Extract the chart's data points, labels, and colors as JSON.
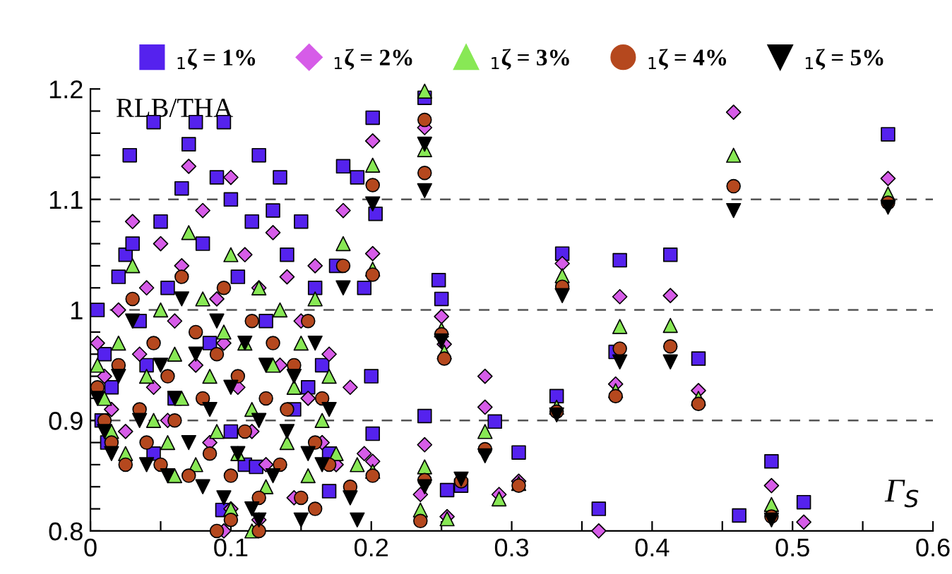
{
  "chart_data": {
    "type": "scatter",
    "xlabel": "Γ$_{S}$",
    "ylabel": "RLB/THA",
    "xlim": [
      0,
      0.6
    ],
    "xticks": [
      0,
      {
        "value": 0.05,
        "label": null
      },
      0.1,
      {
        "value": 0.15,
        "label": null
      },
      0.2,
      {
        "value": 0.25,
        "label": null
      },
      0.3,
      {
        "value": 0.35,
        "label": null
      },
      0.4,
      {
        "value": 0.45,
        "label": null
      },
      0.5,
      {
        "value": 0.55,
        "label": null
      },
      0.6
    ],
    "ylim": [
      0.8,
      1.2
    ],
    "yticks": [
      0.8,
      {
        "value": 0.82,
        "label": null
      },
      {
        "value": 0.84,
        "label": null
      },
      {
        "value": 0.86,
        "label": null
      },
      {
        "value": 0.88,
        "label": null
      },
      0.9,
      {
        "value": 0.92,
        "label": null
      },
      {
        "value": 0.94,
        "label": null
      },
      {
        "value": 0.96,
        "label": null
      },
      {
        "value": 0.98,
        "label": null
      },
      1,
      {
        "value": 1.02,
        "label": null
      },
      {
        "value": 1.04,
        "label": null
      },
      {
        "value": 1.06,
        "label": null
      },
      {
        "value": 1.08,
        "label": null
      },
      1.1,
      {
        "value": 1.12,
        "label": null
      },
      {
        "value": 1.14,
        "label": null
      },
      {
        "value": 1.16,
        "label": null
      },
      {
        "value": 1.18,
        "label": null
      },
      1.2
    ],
    "grid": "y",
    "legend": "top",
    "series": [
      {
        "name": "$_{1}$ζ = 1%",
        "color": "#5522ee",
        "marker": "square",
        "x": [
          0.005,
          0.01,
          0.015,
          0.008,
          0.012,
          0.02,
          0.025,
          0.03,
          0.028,
          0.035,
          0.04,
          0.045,
          0.045,
          0.05,
          0.055,
          0.06,
          0.065,
          0.07,
          0.075,
          0.08,
          0.085,
          0.09,
          0.095,
          0.1,
          0.1,
          0.105,
          0.11,
          0.115,
          0.12,
          0.125,
          0.13,
          0.135,
          0.14,
          0.145,
          0.15,
          0.155,
          0.16,
          0.165,
          0.17,
          0.175,
          0.18,
          0.19,
          0.195,
          0.2,
          0.118,
          0.17,
          0.094,
          0.201,
          0.203,
          0.201,
          0.238,
          0.238,
          0.248,
          0.25,
          0.288,
          0.305,
          0.254,
          0.264,
          0.336,
          0.332,
          0.362,
          0.377,
          0.374,
          0.413,
          0.433,
          0.485,
          0.508,
          0.462,
          0.568
        ],
        "values": [
          1.0,
          0.96,
          0.93,
          0.9,
          0.88,
          1.03,
          1.05,
          1.06,
          1.14,
          0.99,
          0.95,
          1.17,
          0.87,
          1.08,
          1.02,
          0.92,
          1.11,
          1.15,
          1.17,
          1.06,
          0.97,
          1.12,
          1.17,
          1.1,
          0.89,
          1.03,
          0.86,
          1.08,
          1.14,
          0.99,
          1.09,
          1.12,
          1.05,
          0.91,
          1.08,
          0.93,
          1.02,
          0.95,
          0.87,
          1.04,
          1.13,
          1.12,
          1.02,
          0.94,
          0.858,
          0.836,
          0.819,
          1.174,
          1.087,
          0.888,
          1.192,
          0.904,
          1.027,
          1.01,
          0.899,
          0.871,
          0.837,
          0.841,
          1.051,
          0.922,
          0.82,
          1.045,
          0.962,
          1.05,
          0.956,
          0.863,
          0.826,
          0.814,
          1.159
        ]
      },
      {
        "name": "$_{1}$ζ = 2%",
        "color": "#d65ce8",
        "marker": "diamond",
        "x": [
          0.005,
          0.01,
          0.015,
          0.02,
          0.025,
          0.03,
          0.035,
          0.04,
          0.045,
          0.05,
          0.055,
          0.06,
          0.065,
          0.07,
          0.075,
          0.08,
          0.085,
          0.09,
          0.095,
          0.1,
          0.105,
          0.11,
          0.115,
          0.12,
          0.125,
          0.13,
          0.135,
          0.14,
          0.145,
          0.15,
          0.155,
          0.16,
          0.165,
          0.17,
          0.175,
          0.18,
          0.185,
          0.195,
          0.1,
          0.095,
          0.12,
          0.201,
          0.201,
          0.201,
          0.238,
          0.238,
          0.25,
          0.252,
          0.281,
          0.281,
          0.305,
          0.291,
          0.254,
          0.235,
          0.336,
          0.362,
          0.458,
          0.568,
          0.377,
          0.374,
          0.413,
          0.433,
          0.485,
          0.508
        ],
        "values": [
          0.97,
          0.94,
          0.91,
          1.0,
          0.89,
          1.08,
          0.96,
          1.02,
          0.93,
          1.06,
          0.9,
          0.99,
          1.04,
          1.13,
          0.95,
          1.09,
          0.88,
          1.01,
          0.97,
          1.12,
          0.93,
          1.05,
          0.89,
          1.02,
          0.86,
          1.07,
          0.95,
          1.03,
          0.83,
          0.99,
          0.92,
          1.04,
          0.88,
          0.96,
          0.86,
          1.09,
          0.93,
          0.87,
          0.82,
          0.8,
          0.81,
          1.153,
          1.051,
          0.863,
          1.165,
          0.878,
          0.994,
          0.969,
          0.94,
          0.912,
          0.845,
          0.833,
          0.813,
          0.833,
          1.042,
          0.8,
          1.179,
          1.119,
          1.012,
          0.933,
          1.013,
          0.927,
          0.841,
          0.808
        ]
      },
      {
        "name": "$_{1}$ζ = 3%",
        "color": "#88e855",
        "marker": "triangle",
        "x": [
          0.005,
          0.01,
          0.015,
          0.02,
          0.025,
          0.03,
          0.04,
          0.045,
          0.05,
          0.055,
          0.06,
          0.065,
          0.07,
          0.075,
          0.08,
          0.085,
          0.09,
          0.095,
          0.1,
          0.105,
          0.11,
          0.115,
          0.12,
          0.125,
          0.13,
          0.135,
          0.14,
          0.145,
          0.15,
          0.155,
          0.16,
          0.165,
          0.17,
          0.175,
          0.18,
          0.19,
          0.1,
          0.115,
          0.06,
          0.201,
          0.201,
          0.201,
          0.238,
          0.238,
          0.238,
          0.235,
          0.25,
          0.252,
          0.281,
          0.305,
          0.291,
          0.254,
          0.336,
          0.332,
          0.458,
          0.568,
          0.377,
          0.374,
          0.413,
          0.433,
          0.485
        ],
        "values": [
          0.95,
          0.92,
          0.89,
          0.97,
          0.87,
          1.04,
          0.94,
          0.9,
          1.0,
          0.88,
          0.96,
          0.92,
          1.07,
          0.86,
          1.01,
          0.94,
          0.89,
          0.98,
          1.05,
          0.87,
          0.97,
          0.91,
          1.02,
          0.84,
          0.95,
          1.0,
          0.88,
          0.93,
          0.97,
          0.85,
          1.01,
          0.9,
          0.94,
          0.87,
          1.06,
          0.86,
          0.82,
          0.8,
          0.85,
          1.131,
          1.037,
          0.854,
          1.198,
          1.145,
          0.858,
          0.819,
          0.982,
          0.962,
          0.89,
          0.843,
          0.829,
          0.811,
          1.031,
          0.912,
          1.14,
          1.105,
          0.985,
          0.927,
          0.986,
          0.92,
          0.824
        ]
      },
      {
        "name": "$_{1}$ζ = 4%",
        "color": "#b5481e",
        "marker": "circle",
        "x": [
          0.005,
          0.01,
          0.015,
          0.02,
          0.025,
          0.03,
          0.035,
          0.04,
          0.045,
          0.05,
          0.055,
          0.06,
          0.065,
          0.07,
          0.075,
          0.08,
          0.085,
          0.09,
          0.095,
          0.1,
          0.105,
          0.11,
          0.115,
          0.12,
          0.125,
          0.13,
          0.135,
          0.14,
          0.145,
          0.15,
          0.155,
          0.16,
          0.165,
          0.17,
          0.18,
          0.185,
          0.09,
          0.1,
          0.12,
          0.16,
          0.201,
          0.201,
          0.201,
          0.238,
          0.238,
          0.238,
          0.235,
          0.25,
          0.252,
          0.281,
          0.305,
          0.264,
          0.336,
          0.332,
          0.458,
          0.568,
          0.377,
          0.374,
          0.413,
          0.433,
          0.485
        ],
        "values": [
          0.93,
          0.9,
          0.88,
          0.95,
          0.86,
          1.01,
          0.91,
          0.88,
          0.97,
          0.86,
          0.94,
          0.9,
          1.03,
          0.85,
          0.98,
          0.92,
          0.87,
          0.96,
          1.02,
          0.85,
          0.94,
          0.89,
          0.99,
          0.83,
          0.92,
          0.97,
          0.86,
          0.91,
          0.95,
          0.83,
          0.99,
          0.88,
          0.92,
          0.86,
          1.04,
          0.84,
          0.8,
          0.81,
          0.8,
          0.82,
          1.113,
          1.032,
          0.85,
          1.172,
          1.124,
          0.846,
          0.809,
          0.978,
          0.956,
          0.874,
          0.841,
          0.845,
          1.021,
          0.908,
          1.112,
          1.097,
          0.965,
          0.922,
          0.967,
          0.915,
          0.813
        ]
      },
      {
        "name": "$_{1}$ζ = 5%",
        "color": "#000000",
        "marker": "triangle_down",
        "x": [
          0.005,
          0.01,
          0.015,
          0.02,
          0.03,
          0.035,
          0.04,
          0.05,
          0.055,
          0.06,
          0.065,
          0.07,
          0.075,
          0.08,
          0.085,
          0.09,
          0.095,
          0.1,
          0.105,
          0.11,
          0.115,
          0.12,
          0.125,
          0.13,
          0.14,
          0.145,
          0.15,
          0.155,
          0.16,
          0.165,
          0.17,
          0.18,
          0.185,
          0.19,
          0.12,
          0.201,
          0.238,
          0.238,
          0.238,
          0.25,
          0.281,
          0.264,
          0.336,
          0.332,
          0.458,
          0.568,
          0.377,
          0.413,
          0.485
        ],
        "values": [
          0.92,
          0.89,
          0.87,
          0.94,
          0.99,
          0.9,
          0.86,
          0.95,
          0.85,
          0.92,
          1.01,
          0.88,
          0.96,
          0.84,
          0.91,
          0.99,
          0.83,
          0.93,
          0.87,
          0.97,
          0.82,
          0.9,
          0.95,
          0.85,
          0.89,
          0.94,
          0.81,
          0.87,
          0.97,
          0.86,
          0.91,
          1.02,
          0.83,
          0.81,
          0.81,
          1.096,
          1.15,
          1.108,
          0.84,
          0.972,
          0.868,
          0.847,
          1.013,
          0.905,
          1.09,
          1.093,
          0.953,
          0.953,
          0.81
        ]
      }
    ]
  }
}
